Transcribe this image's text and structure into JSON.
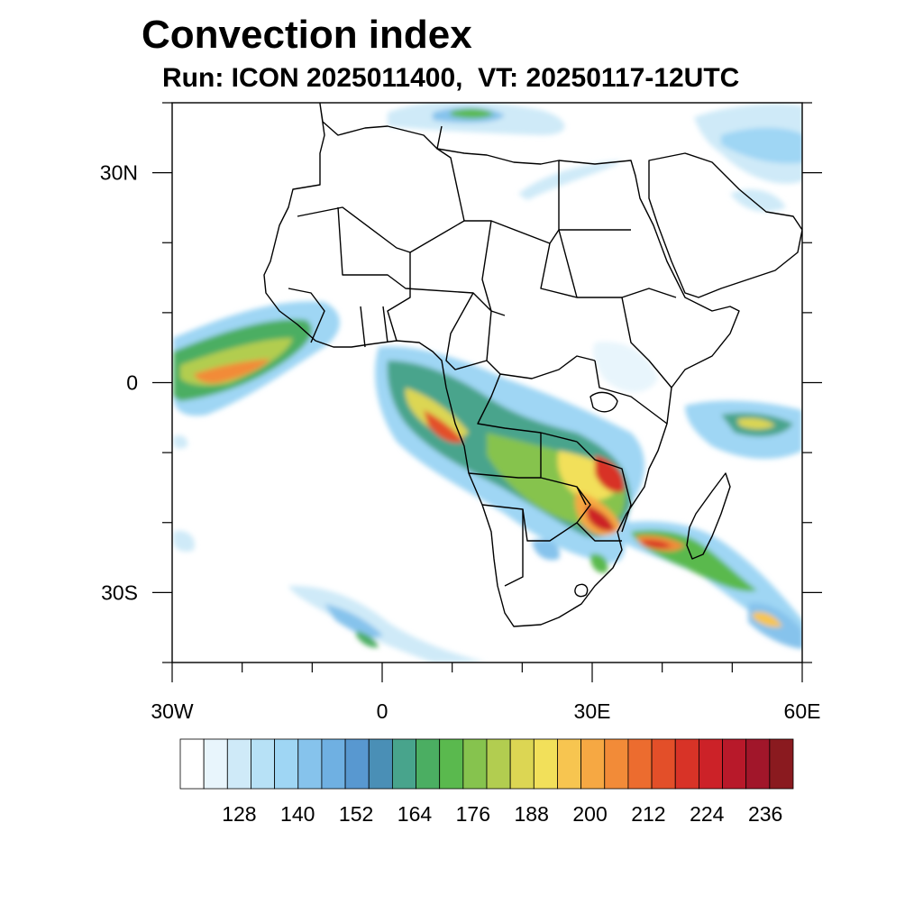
{
  "title": "Convection index",
  "subtitle": "Run: ICON 2025011400,  VT: 20250117-12UTC",
  "map": {
    "lon_range": [
      -30,
      60
    ],
    "lat_range": [
      -40,
      40
    ],
    "lat_ticks": [
      {
        "value": 30,
        "label": "30N"
      },
      {
        "value": 0,
        "label": "0"
      },
      {
        "value": -30,
        "label": "30S"
      }
    ],
    "lon_ticks": [
      {
        "value": -30,
        "label": "30W"
      },
      {
        "value": 0,
        "label": "0"
      },
      {
        "value": 30,
        "label": "30E"
      },
      {
        "value": 60,
        "label": "60E"
      }
    ]
  },
  "colorbar": {
    "labels": [
      "128",
      "140",
      "152",
      "164",
      "176",
      "188",
      "200",
      "212",
      "224",
      "236"
    ],
    "colors": [
      "#ffffff",
      "#e8f5fc",
      "#cfeaf8",
      "#b7e1f6",
      "#9fd6f4",
      "#86c3ec",
      "#6fb0e2",
      "#5898d0",
      "#4a8fb6",
      "#48a48c",
      "#4bae62",
      "#5ab94e",
      "#86c34e",
      "#b2cd50",
      "#dcd653",
      "#f2e05a",
      "#f7c550",
      "#f6a843",
      "#f28b38",
      "#ec6c2f",
      "#e34f29",
      "#d83327",
      "#cc2228",
      "#b8192a",
      "#a1162a",
      "#8a1a1f"
    ]
  }
}
